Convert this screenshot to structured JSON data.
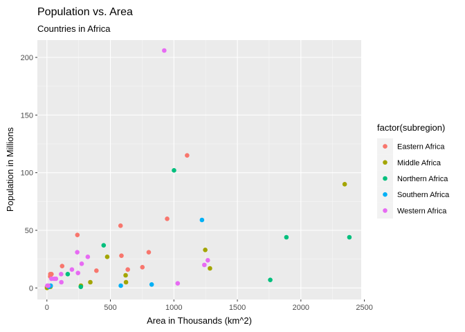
{
  "chart_data": {
    "type": "scatter",
    "title": "Population vs. Area",
    "subtitle": "Countries in Africa",
    "xlabel": "Area in Thousands (km^2)",
    "ylabel": "Population in Millions",
    "xlim": [
      -75,
      2475
    ],
    "ylim": [
      -10,
      215
    ],
    "x_ticks": [
      0,
      500,
      1000,
      1500,
      2000,
      2500
    ],
    "y_ticks": [
      0,
      50,
      100,
      150,
      200
    ],
    "grid": true,
    "legend": {
      "title": "factor(subregion)",
      "position": "right"
    },
    "series": [
      {
        "name": "Eastern Africa",
        "color": "#F8766D",
        "points": [
          [
            1,
            1
          ],
          [
            10,
            1
          ],
          [
            18,
            1
          ],
          [
            26,
            10
          ],
          [
            27,
            12
          ],
          [
            36,
            12
          ],
          [
            120,
            19
          ],
          [
            240,
            46
          ],
          [
            390,
            15
          ],
          [
            580,
            54
          ],
          [
            587,
            28
          ],
          [
            637,
            16
          ],
          [
            752,
            18
          ],
          [
            802,
            31
          ],
          [
            947,
            60
          ],
          [
            1104,
            115
          ]
        ]
      },
      {
        "name": "Middle Africa",
        "color": "#A3A500",
        "points": [
          [
            1,
            0
          ],
          [
            28,
            1
          ],
          [
            268,
            2
          ],
          [
            342,
            5
          ],
          [
            475,
            27
          ],
          [
            620,
            11
          ],
          [
            623,
            5
          ],
          [
            1247,
            33
          ],
          [
            1284,
            17
          ],
          [
            2345,
            90
          ]
        ]
      },
      {
        "name": "Northern Africa",
        "color": "#00BF7D",
        "points": [
          [
            164,
            12
          ],
          [
            267,
            1
          ],
          [
            447,
            37
          ],
          [
            1001,
            102
          ],
          [
            1759,
            7
          ],
          [
            1886,
            44
          ],
          [
            2382,
            44
          ]
        ]
      },
      {
        "name": "Southern Africa",
        "color": "#00B0F6",
        "points": [
          [
            17,
            1
          ],
          [
            30,
            2
          ],
          [
            582,
            2
          ],
          [
            825,
            3
          ],
          [
            1221,
            59
          ]
        ]
      },
      {
        "name": "Western Africa",
        "color": "#E76BF3",
        "points": [
          [
            4,
            2
          ],
          [
            11,
            2
          ],
          [
            36,
            8
          ],
          [
            57,
            8
          ],
          [
            71,
            8
          ],
          [
            112,
            12
          ],
          [
            114,
            5
          ],
          [
            197,
            16
          ],
          [
            239,
            31
          ],
          [
            245,
            13
          ],
          [
            274,
            21
          ],
          [
            322,
            27
          ],
          [
            924,
            206
          ],
          [
            1030,
            4
          ],
          [
            1240,
            20
          ],
          [
            1267,
            24
          ]
        ]
      }
    ]
  }
}
